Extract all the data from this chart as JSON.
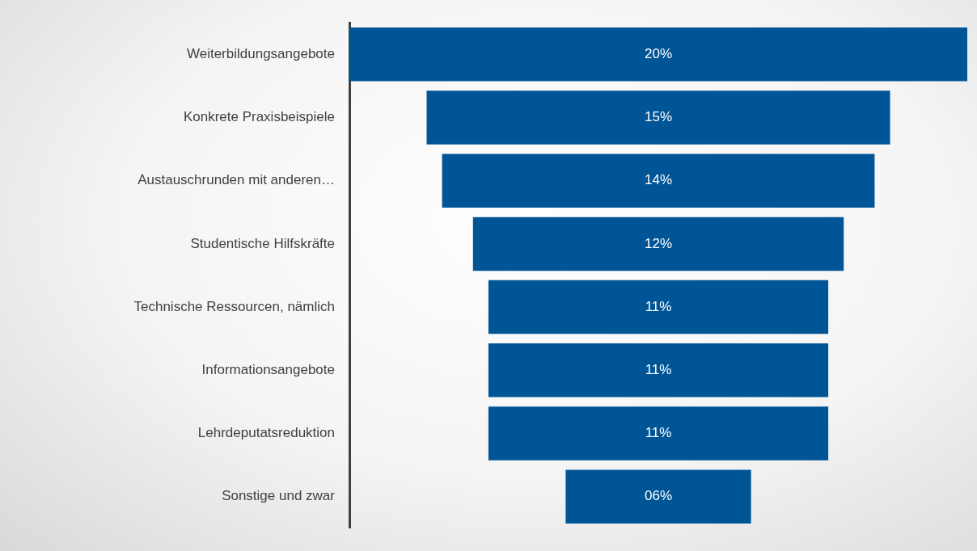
{
  "chart_data": {
    "type": "other",
    "categories": [
      "Weiterbildungsangebote",
      "Konkrete Praxisbeispiele",
      "Austauschrunden mit anderen…",
      "Studentische Hilfskräfte",
      "Technische Ressourcen, nämlich",
      "Informationsangebote",
      "Lehrdeputatsreduktion",
      "Sonstige und zwar"
    ],
    "values": [
      20,
      15,
      14,
      12,
      11,
      11,
      11,
      6
    ],
    "value_labels": [
      "20%",
      "15%",
      "14%",
      "12%",
      "11%",
      "11%",
      "11%",
      "06%"
    ],
    "color": "#005596"
  }
}
